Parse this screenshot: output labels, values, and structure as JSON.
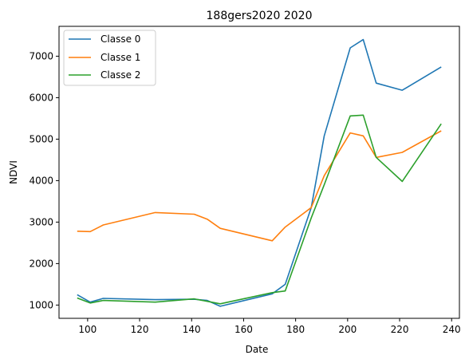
{
  "chart_data": {
    "type": "line",
    "title": "188gers2020 2020",
    "xlabel": "Date",
    "ylabel": "NDVI",
    "xlim": [
      89,
      243
    ],
    "ylim": [
      680,
      7720
    ],
    "xticks": [
      100,
      120,
      140,
      160,
      180,
      200,
      220,
      240
    ],
    "yticks": [
      1000,
      2000,
      3000,
      4000,
      5000,
      6000,
      7000
    ],
    "grid": false,
    "legend_position": "top-left",
    "series": [
      {
        "name": "Classe 0",
        "color": "#1f77b4",
        "x": [
          96,
          101,
          106,
          126,
          141,
          146,
          151,
          171,
          176,
          186,
          191,
          201,
          206,
          211,
          221,
          236
        ],
        "y": [
          1250,
          1070,
          1160,
          1130,
          1140,
          1110,
          970,
          1270,
          1500,
          3350,
          5080,
          7200,
          7400,
          6350,
          6180,
          6740
        ]
      },
      {
        "name": "Classe 1",
        "color": "#ff7f0e",
        "x": [
          96,
          101,
          106,
          126,
          141,
          146,
          151,
          171,
          176,
          186,
          191,
          201,
          206,
          211,
          221,
          236
        ],
        "y": [
          2780,
          2770,
          2930,
          3230,
          3190,
          3070,
          2850,
          2550,
          2880,
          3350,
          4120,
          5150,
          5080,
          4560,
          4680,
          5200
        ]
      },
      {
        "name": "Classe 2",
        "color": "#2ca02c",
        "x": [
          96,
          101,
          106,
          126,
          141,
          146,
          151,
          171,
          176,
          186,
          191,
          201,
          206,
          211,
          221,
          236
        ],
        "y": [
          1170,
          1050,
          1110,
          1070,
          1150,
          1090,
          1030,
          1300,
          1340,
          3100,
          3900,
          5560,
          5580,
          4560,
          3980,
          5370
        ]
      }
    ]
  }
}
